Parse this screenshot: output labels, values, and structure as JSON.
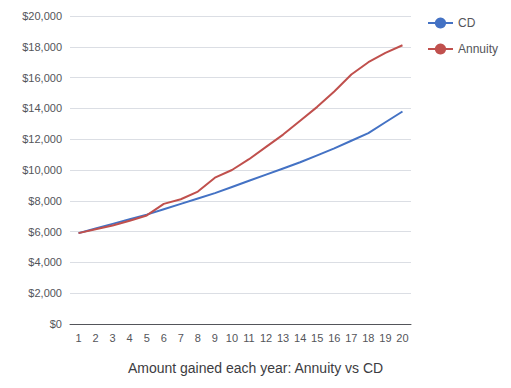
{
  "chart_data": {
    "type": "line",
    "title": "Amount gained each year: Annuity vs CD",
    "categories": [
      "1",
      "2",
      "3",
      "4",
      "5",
      "6",
      "7",
      "8",
      "9",
      "10",
      "11",
      "12",
      "13",
      "14",
      "15",
      "16",
      "17",
      "18",
      "19",
      "20"
    ],
    "series": [
      {
        "name": "CD",
        "color": "#4472C4",
        "values": [
          5900,
          6200,
          6500,
          6800,
          7100,
          7450,
          7800,
          8150,
          8500,
          8900,
          9300,
          9700,
          10100,
          10500,
          10950,
          11400,
          11900,
          12400,
          13100,
          13800
        ]
      },
      {
        "name": "Annuity",
        "color": "#C0504D",
        "values": [
          5900,
          6150,
          6400,
          6700,
          7050,
          7800,
          8100,
          8600,
          9500,
          10000,
          10700,
          11500,
          12300,
          13200,
          14100,
          15100,
          16200,
          17000,
          17600,
          18100
        ]
      }
    ],
    "ylim": [
      0,
      20000
    ],
    "yticks": [
      {
        "value": 0,
        "label": "$0"
      },
      {
        "value": 2000,
        "label": "$2,000"
      },
      {
        "value": 4000,
        "label": "$4,000"
      },
      {
        "value": 6000,
        "label": "$6,000"
      },
      {
        "value": 8000,
        "label": "$8,000"
      },
      {
        "value": 10000,
        "label": "$10,000"
      },
      {
        "value": 12000,
        "label": "$12,000"
      },
      {
        "value": 14000,
        "label": "$14,000"
      },
      {
        "value": 16000,
        "label": "$16,000"
      },
      {
        "value": 18000,
        "label": "$18,000"
      },
      {
        "value": 20000,
        "label": "$20,000"
      }
    ],
    "grid": true,
    "legend": "upper right"
  }
}
